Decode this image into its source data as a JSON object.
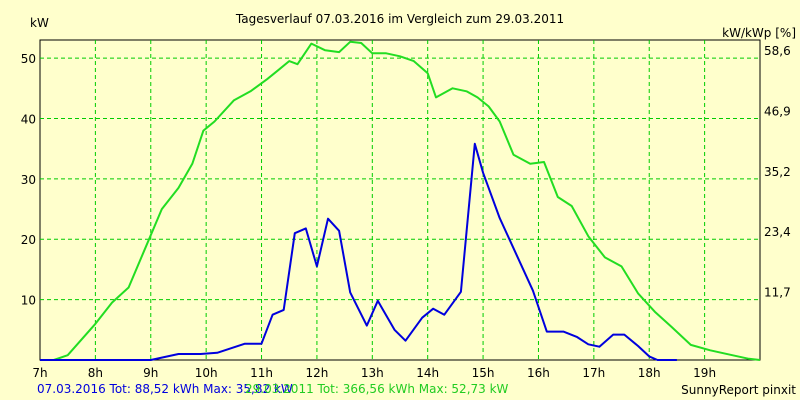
{
  "chart_data": {
    "type": "line",
    "title": "Tagesverlauf 07.03.2016 im Vergleich zum 29.03.2011",
    "ylabel_left": "kW",
    "ylabel_right": "kW/kWp [%]",
    "x_ticks": [
      "7h",
      "8h",
      "9h",
      "10h",
      "11h",
      "12h",
      "13h",
      "14h",
      "15h",
      "16h",
      "17h",
      "18h",
      "19h"
    ],
    "y_ticks": [
      10,
      20,
      30,
      40,
      50
    ],
    "y2_ticks": [
      "11,7",
      "23,4",
      "35,2",
      "46,9",
      "58,6"
    ],
    "xlim": [
      7,
      20
    ],
    "ylim": [
      0,
      53
    ],
    "grid": true,
    "series": [
      {
        "name": "07.03.2016",
        "color": "#0000dd",
        "x": [
          7,
          8,
          9,
          9.5,
          9.9,
          10.2,
          10.7,
          11.0,
          11.2,
          11.4,
          11.6,
          11.8,
          12.0,
          12.2,
          12.4,
          12.6,
          12.9,
          13.1,
          13.4,
          13.6,
          13.9,
          14.1,
          14.3,
          14.6,
          14.85,
          15.0,
          15.3,
          15.6,
          15.9,
          16.15,
          16.45,
          16.7,
          16.9,
          17.1,
          17.35,
          17.55,
          17.8,
          18.0,
          18.15,
          18.35,
          18.5
        ],
        "y": [
          0,
          0,
          0,
          1,
          1,
          1.2,
          2.7,
          2.7,
          7.5,
          8.3,
          21,
          21.8,
          15.5,
          23.4,
          21.4,
          11.2,
          5.7,
          9.8,
          5,
          3.2,
          7,
          8.5,
          7.5,
          11.3,
          35.8,
          31,
          23.5,
          17.5,
          11.5,
          4.7,
          4.7,
          3.8,
          2.6,
          2.2,
          4.2,
          4.2,
          2.3,
          0.6,
          0,
          0,
          0
        ]
      },
      {
        "name": "29.03.2011",
        "color": "#22dd22",
        "x": [
          7,
          7.25,
          7.5,
          8.0,
          8.3,
          8.6,
          8.9,
          9.2,
          9.5,
          9.75,
          9.95,
          10.15,
          10.5,
          10.8,
          11.1,
          11.3,
          11.5,
          11.65,
          11.9,
          12.15,
          12.4,
          12.6,
          12.8,
          13.0,
          13.25,
          13.5,
          13.75,
          14.0,
          14.15,
          14.45,
          14.7,
          14.9,
          15.1,
          15.3,
          15.55,
          15.85,
          16.1,
          16.35,
          16.6,
          16.9,
          17.2,
          17.5,
          17.8,
          18.1,
          18.4,
          18.75,
          19.1,
          19.5,
          19.8,
          20.0
        ],
        "y": [
          0,
          0,
          0.8,
          6,
          9.5,
          12,
          18.5,
          25,
          28.5,
          32.5,
          38,
          39.5,
          43,
          44.5,
          46.5,
          48,
          49.5,
          49,
          52.4,
          51.3,
          51,
          52.7,
          52.5,
          50.8,
          50.8,
          50.3,
          49.5,
          47.5,
          43.5,
          45,
          44.5,
          43.5,
          42,
          39.5,
          34,
          32.5,
          32.8,
          27,
          25.5,
          20.5,
          17,
          15.5,
          11,
          8,
          5.5,
          2.5,
          1.6,
          0.8,
          0.2,
          0
        ]
      }
    ],
    "footer": {
      "s1_label": "07.03.2016 Tot: 88,52 kWh Max: 35,82 kW",
      "s2_label": "29.03.2011 Tot: 366,56 kWh Max: 52,73 kW",
      "credit": "SunnyReport pinxit"
    }
  }
}
